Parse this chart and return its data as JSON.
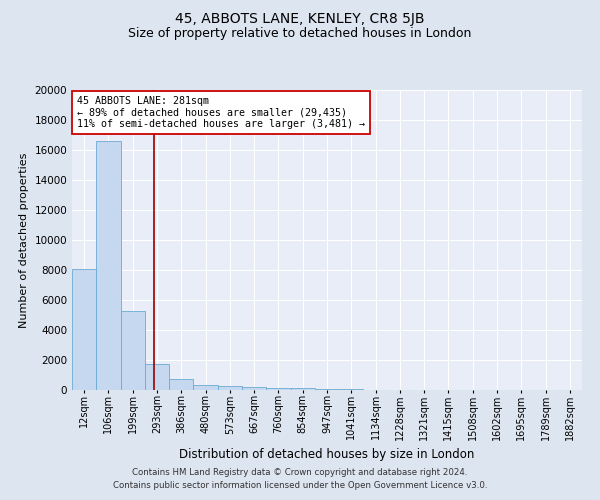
{
  "title": "45, ABBOTS LANE, KENLEY, CR8 5JB",
  "subtitle": "Size of property relative to detached houses in London",
  "xlabel": "Distribution of detached houses by size in London",
  "ylabel": "Number of detached properties",
  "categories": [
    "12sqm",
    "106sqm",
    "199sqm",
    "293sqm",
    "386sqm",
    "480sqm",
    "573sqm",
    "667sqm",
    "760sqm",
    "854sqm",
    "947sqm",
    "1041sqm",
    "1134sqm",
    "1228sqm",
    "1321sqm",
    "1415sqm",
    "1508sqm",
    "1602sqm",
    "1695sqm",
    "1789sqm",
    "1882sqm"
  ],
  "values": [
    8100,
    16600,
    5300,
    1750,
    750,
    350,
    250,
    200,
    150,
    150,
    50,
    50,
    30,
    20,
    15,
    10,
    8,
    5,
    4,
    3,
    2
  ],
  "bar_color": "#c5d8f0",
  "bar_edge_color": "#6aaad4",
  "vline_x": 2.88,
  "vline_color": "#990000",
  "annotation_text": "45 ABBOTS LANE: 281sqm\n← 89% of detached houses are smaller (29,435)\n11% of semi-detached houses are larger (3,481) →",
  "annotation_box_color": "#ffffff",
  "annotation_box_edge": "#cc0000",
  "ylim": [
    0,
    20000
  ],
  "yticks": [
    0,
    2000,
    4000,
    6000,
    8000,
    10000,
    12000,
    14000,
    16000,
    18000,
    20000
  ],
  "bg_color": "#dde5f0",
  "plot_bg_color": "#e8edf8",
  "footer_line1": "Contains HM Land Registry data © Crown copyright and database right 2024.",
  "footer_line2": "Contains public sector information licensed under the Open Government Licence v3.0.",
  "title_fontsize": 10,
  "subtitle_fontsize": 9,
  "ylabel_fontsize": 8,
  "xlabel_fontsize": 8.5
}
